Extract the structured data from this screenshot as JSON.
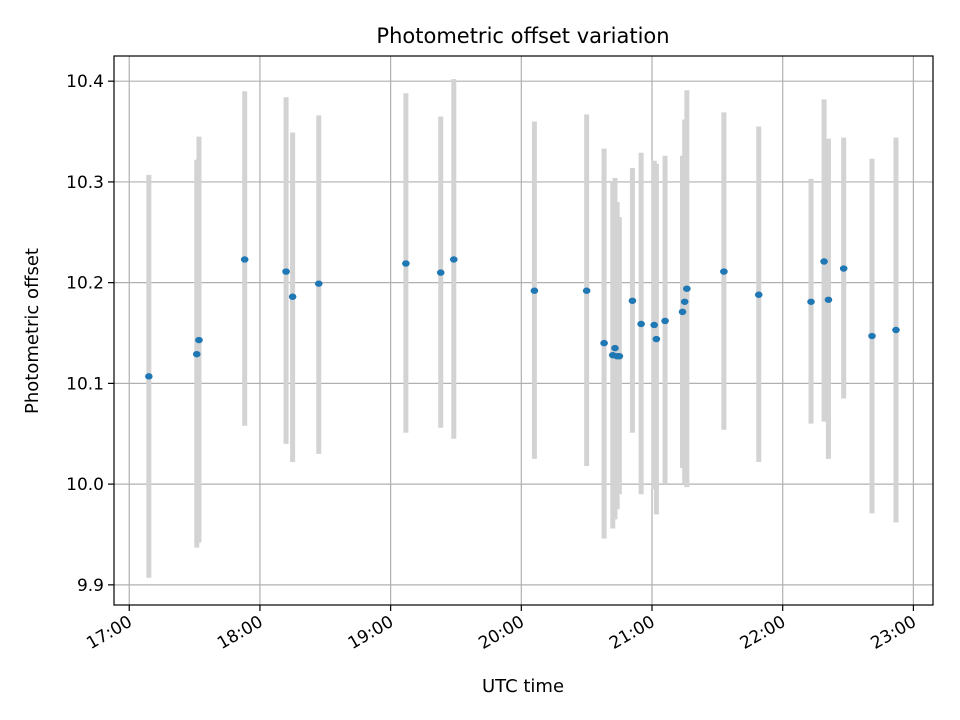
{
  "chart_data": {
    "type": "scatter",
    "title": "Photometric offset variation",
    "xlabel": "UTC time",
    "ylabel": "Photometric offset",
    "xlim": [
      "16:53",
      "23:09"
    ],
    "ylim": [
      9.88,
      10.425
    ],
    "x_ticks": [
      "17:00",
      "18:00",
      "19:00",
      "20:00",
      "21:00",
      "22:00",
      "23:00"
    ],
    "y_ticks": [
      "9.9",
      "10.0",
      "10.1",
      "10.2",
      "10.3",
      "10.4"
    ],
    "grid": true,
    "colors": {
      "point": "#1f77b4",
      "errorbar": "#d3d3d3",
      "grid": "#b0b0b0"
    },
    "points": [
      {
        "x": "17:09",
        "y": 10.107,
        "ylo": 9.907,
        "yhi": 10.307
      },
      {
        "x": "17:31",
        "y": 10.129,
        "ylo": 9.937,
        "yhi": 10.322
      },
      {
        "x": "17:32",
        "y": 10.143,
        "ylo": 9.942,
        "yhi": 10.345
      },
      {
        "x": "17:53",
        "y": 10.223,
        "ylo": 10.058,
        "yhi": 10.39
      },
      {
        "x": "18:12",
        "y": 10.211,
        "ylo": 10.04,
        "yhi": 10.384
      },
      {
        "x": "18:15",
        "y": 10.186,
        "ylo": 10.022,
        "yhi": 10.349
      },
      {
        "x": "18:27",
        "y": 10.199,
        "ylo": 10.03,
        "yhi": 10.366
      },
      {
        "x": "19:07",
        "y": 10.219,
        "ylo": 10.051,
        "yhi": 10.388
      },
      {
        "x": "19:23",
        "y": 10.21,
        "ylo": 10.056,
        "yhi": 10.365
      },
      {
        "x": "19:29",
        "y": 10.223,
        "ylo": 10.045,
        "yhi": 10.402
      },
      {
        "x": "20:06",
        "y": 10.192,
        "ylo": 10.025,
        "yhi": 10.36
      },
      {
        "x": "20:30",
        "y": 10.192,
        "ylo": 10.018,
        "yhi": 10.367
      },
      {
        "x": "20:38",
        "y": 10.14,
        "ylo": 9.946,
        "yhi": 10.333
      },
      {
        "x": "20:42",
        "y": 10.128,
        "ylo": 9.956,
        "yhi": 10.301
      },
      {
        "x": "20:43",
        "y": 10.135,
        "ylo": 9.965,
        "yhi": 10.304
      },
      {
        "x": "20:44",
        "y": 10.127,
        "ylo": 9.975,
        "yhi": 10.28
      },
      {
        "x": "20:45",
        "y": 10.127,
        "ylo": 9.99,
        "yhi": 10.265
      },
      {
        "x": "20:51",
        "y": 10.182,
        "ylo": 10.051,
        "yhi": 10.314
      },
      {
        "x": "20:55",
        "y": 10.159,
        "ylo": 9.99,
        "yhi": 10.329
      },
      {
        "x": "21:01",
        "y": 10.158,
        "ylo": 9.995,
        "yhi": 10.321
      },
      {
        "x": "21:02",
        "y": 10.144,
        "ylo": 9.97,
        "yhi": 10.318
      },
      {
        "x": "21:06",
        "y": 10.162,
        "ylo": 10.0,
        "yhi": 10.326
      },
      {
        "x": "21:14",
        "y": 10.171,
        "ylo": 10.016,
        "yhi": 10.326
      },
      {
        "x": "21:15",
        "y": 10.181,
        "ylo": 10.0,
        "yhi": 10.362
      },
      {
        "x": "21:16",
        "y": 10.194,
        "ylo": 9.997,
        "yhi": 10.391
      },
      {
        "x": "21:33",
        "y": 10.211,
        "ylo": 10.054,
        "yhi": 10.369
      },
      {
        "x": "21:49",
        "y": 10.188,
        "ylo": 10.022,
        "yhi": 10.355
      },
      {
        "x": "22:13",
        "y": 10.181,
        "ylo": 10.06,
        "yhi": 10.303
      },
      {
        "x": "22:19",
        "y": 10.221,
        "ylo": 10.062,
        "yhi": 10.382
      },
      {
        "x": "22:21",
        "y": 10.183,
        "ylo": 10.025,
        "yhi": 10.343
      },
      {
        "x": "22:28",
        "y": 10.214,
        "ylo": 10.085,
        "yhi": 10.344
      },
      {
        "x": "22:41",
        "y": 10.147,
        "ylo": 9.971,
        "yhi": 10.323
      },
      {
        "x": "22:52",
        "y": 10.153,
        "ylo": 9.962,
        "yhi": 10.344
      }
    ]
  }
}
